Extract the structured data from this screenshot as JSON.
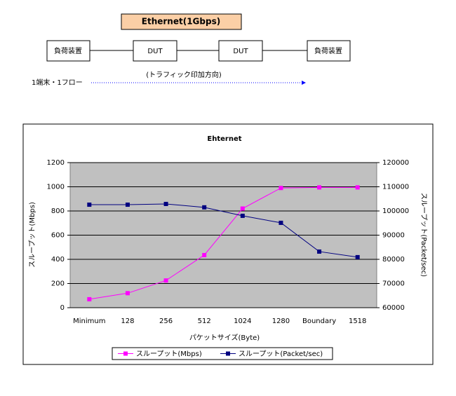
{
  "diagram": {
    "banner": "Ethernet(1Gbps)",
    "nodes": [
      "負荷装置",
      "DUT",
      "DUT",
      "負荷装置"
    ],
    "direction_label": "(トラフィック印加方向)",
    "flow_label": "1端末・1フロー"
  },
  "chart_data": {
    "type": "line",
    "title": "Ehternet",
    "x_label": "パケットサイズ(Byte)",
    "y_label": "スループット(Mbps)",
    "y2_label": "スループット(Packet/sec)",
    "categories": [
      "Minimum",
      "128",
      "256",
      "512",
      "1024",
      "1280",
      "Boundary",
      "1518"
    ],
    "series": [
      {
        "name": "スループット(Mbps)",
        "color": "#ff00ff",
        "values": [
          70,
          120,
          225,
          435,
          820,
          990,
          995,
          995
        ]
      },
      {
        "name": "スループット(Packet/sec)",
        "color": "#000080",
        "axis": "y2",
        "values": [
          102600,
          102600,
          102900,
          101500,
          98000,
          95100,
          83200,
          80900
        ]
      }
    ],
    "ylim": [
      0,
      1200
    ],
    "yticks": [
      0,
      200,
      400,
      600,
      800,
      1000,
      1200
    ],
    "y2lim": [
      60000,
      120000
    ],
    "y2ticks": [
      60000,
      70000,
      80000,
      90000,
      100000,
      110000,
      120000
    ],
    "grid": true,
    "legend": "bottom",
    "plot_background": "#c0c0c0"
  }
}
